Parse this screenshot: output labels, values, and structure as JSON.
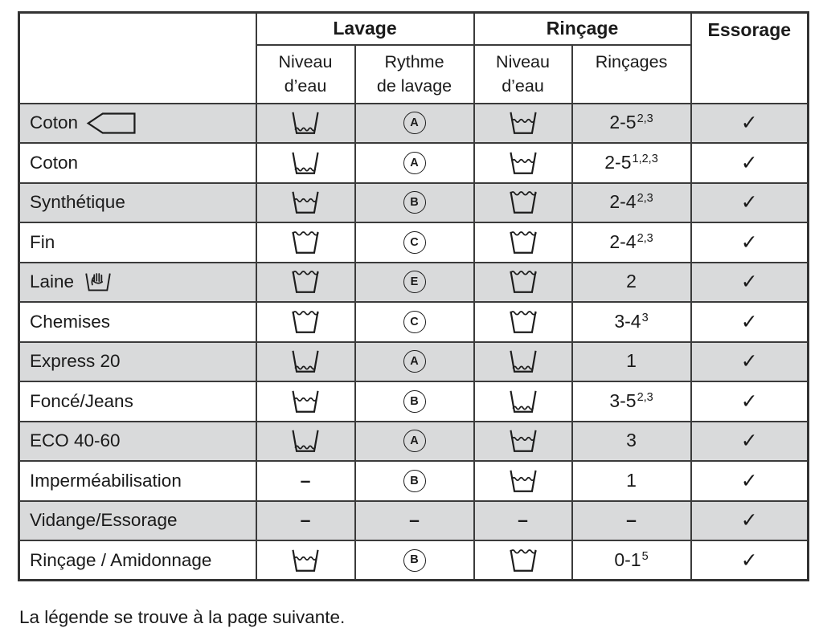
{
  "table": {
    "header": {
      "wash_group": "Lavage",
      "rinse_group": "Rinçage",
      "spin": "Essorage",
      "sub": [
        "Niveau\nd’eau",
        "Rythme\nde lavage",
        "Niveau\nd’eau",
        "Rinçages"
      ]
    },
    "rows": [
      {
        "program": "Coton",
        "program_icon": "favorite-arrow-icon",
        "wash_level": "low",
        "wash_rhythm": "A",
        "rinse_level": "mid",
        "rinses": "2-5",
        "rinses_sup": "2,3",
        "spin": true
      },
      {
        "program": "Coton",
        "program_icon": null,
        "wash_level": "low",
        "wash_rhythm": "A",
        "rinse_level": "mid",
        "rinses": "2-5",
        "rinses_sup": "1,2,3",
        "spin": true
      },
      {
        "program": "Synthétique",
        "program_icon": null,
        "wash_level": "mid",
        "wash_rhythm": "B",
        "rinse_level": "full",
        "rinses": "2-4",
        "rinses_sup": "2,3",
        "spin": true
      },
      {
        "program": "Fin",
        "program_icon": null,
        "wash_level": "full",
        "wash_rhythm": "C",
        "rinse_level": "full",
        "rinses": "2-4",
        "rinses_sup": "2,3",
        "spin": true
      },
      {
        "program": "Laine",
        "program_icon": "handwash-icon",
        "wash_level": "full",
        "wash_rhythm": "E",
        "rinse_level": "full",
        "rinses": "2",
        "rinses_sup": "",
        "spin": true
      },
      {
        "program": "Chemises",
        "program_icon": null,
        "wash_level": "full",
        "wash_rhythm": "C",
        "rinse_level": "full",
        "rinses": "3-4",
        "rinses_sup": "3",
        "spin": true
      },
      {
        "program": "Express 20",
        "program_icon": null,
        "wash_level": "low",
        "wash_rhythm": "A",
        "rinse_level": "low",
        "rinses": "1",
        "rinses_sup": "",
        "spin": true
      },
      {
        "program": "Foncé/Jeans",
        "program_icon": null,
        "wash_level": "mid",
        "wash_rhythm": "B",
        "rinse_level": "low",
        "rinses": "3-5",
        "rinses_sup": "2,3",
        "spin": true
      },
      {
        "program": "ECO 40-60",
        "program_icon": null,
        "wash_level": "low",
        "wash_rhythm": "A",
        "rinse_level": "mid",
        "rinses": "3",
        "rinses_sup": "",
        "spin": true
      },
      {
        "program": "Imperméabilisation",
        "program_icon": null,
        "wash_level": null,
        "wash_rhythm": "B",
        "rinse_level": "mid",
        "rinses": "1",
        "rinses_sup": "",
        "spin": true
      },
      {
        "program": "Vidange/Essorage",
        "program_icon": null,
        "wash_level": null,
        "wash_rhythm": null,
        "rinse_level": null,
        "rinses": null,
        "rinses_sup": "",
        "spin": true
      },
      {
        "program": "Rinçage / Amidonnage",
        "program_icon": null,
        "wash_level": "mid",
        "wash_rhythm": "B",
        "rinse_level": "full",
        "rinses": "0-1",
        "rinses_sup": "5",
        "spin": true
      }
    ]
  },
  "glyphs": {
    "checkmark": "✓",
    "dash": "–"
  },
  "icons": {
    "water_low": "tub-water-low-icon",
    "water_mid": "tub-water-mid-icon",
    "water_full": "tub-water-full-icon",
    "favorite_arrow": "favorite-arrow-icon",
    "handwash": "handwash-icon"
  },
  "colors": {
    "row_stripe": "#d9dadb",
    "border": "#3b3b3b",
    "text": "#1a1a1a"
  },
  "footer": "La légende se trouve à la page suivante."
}
